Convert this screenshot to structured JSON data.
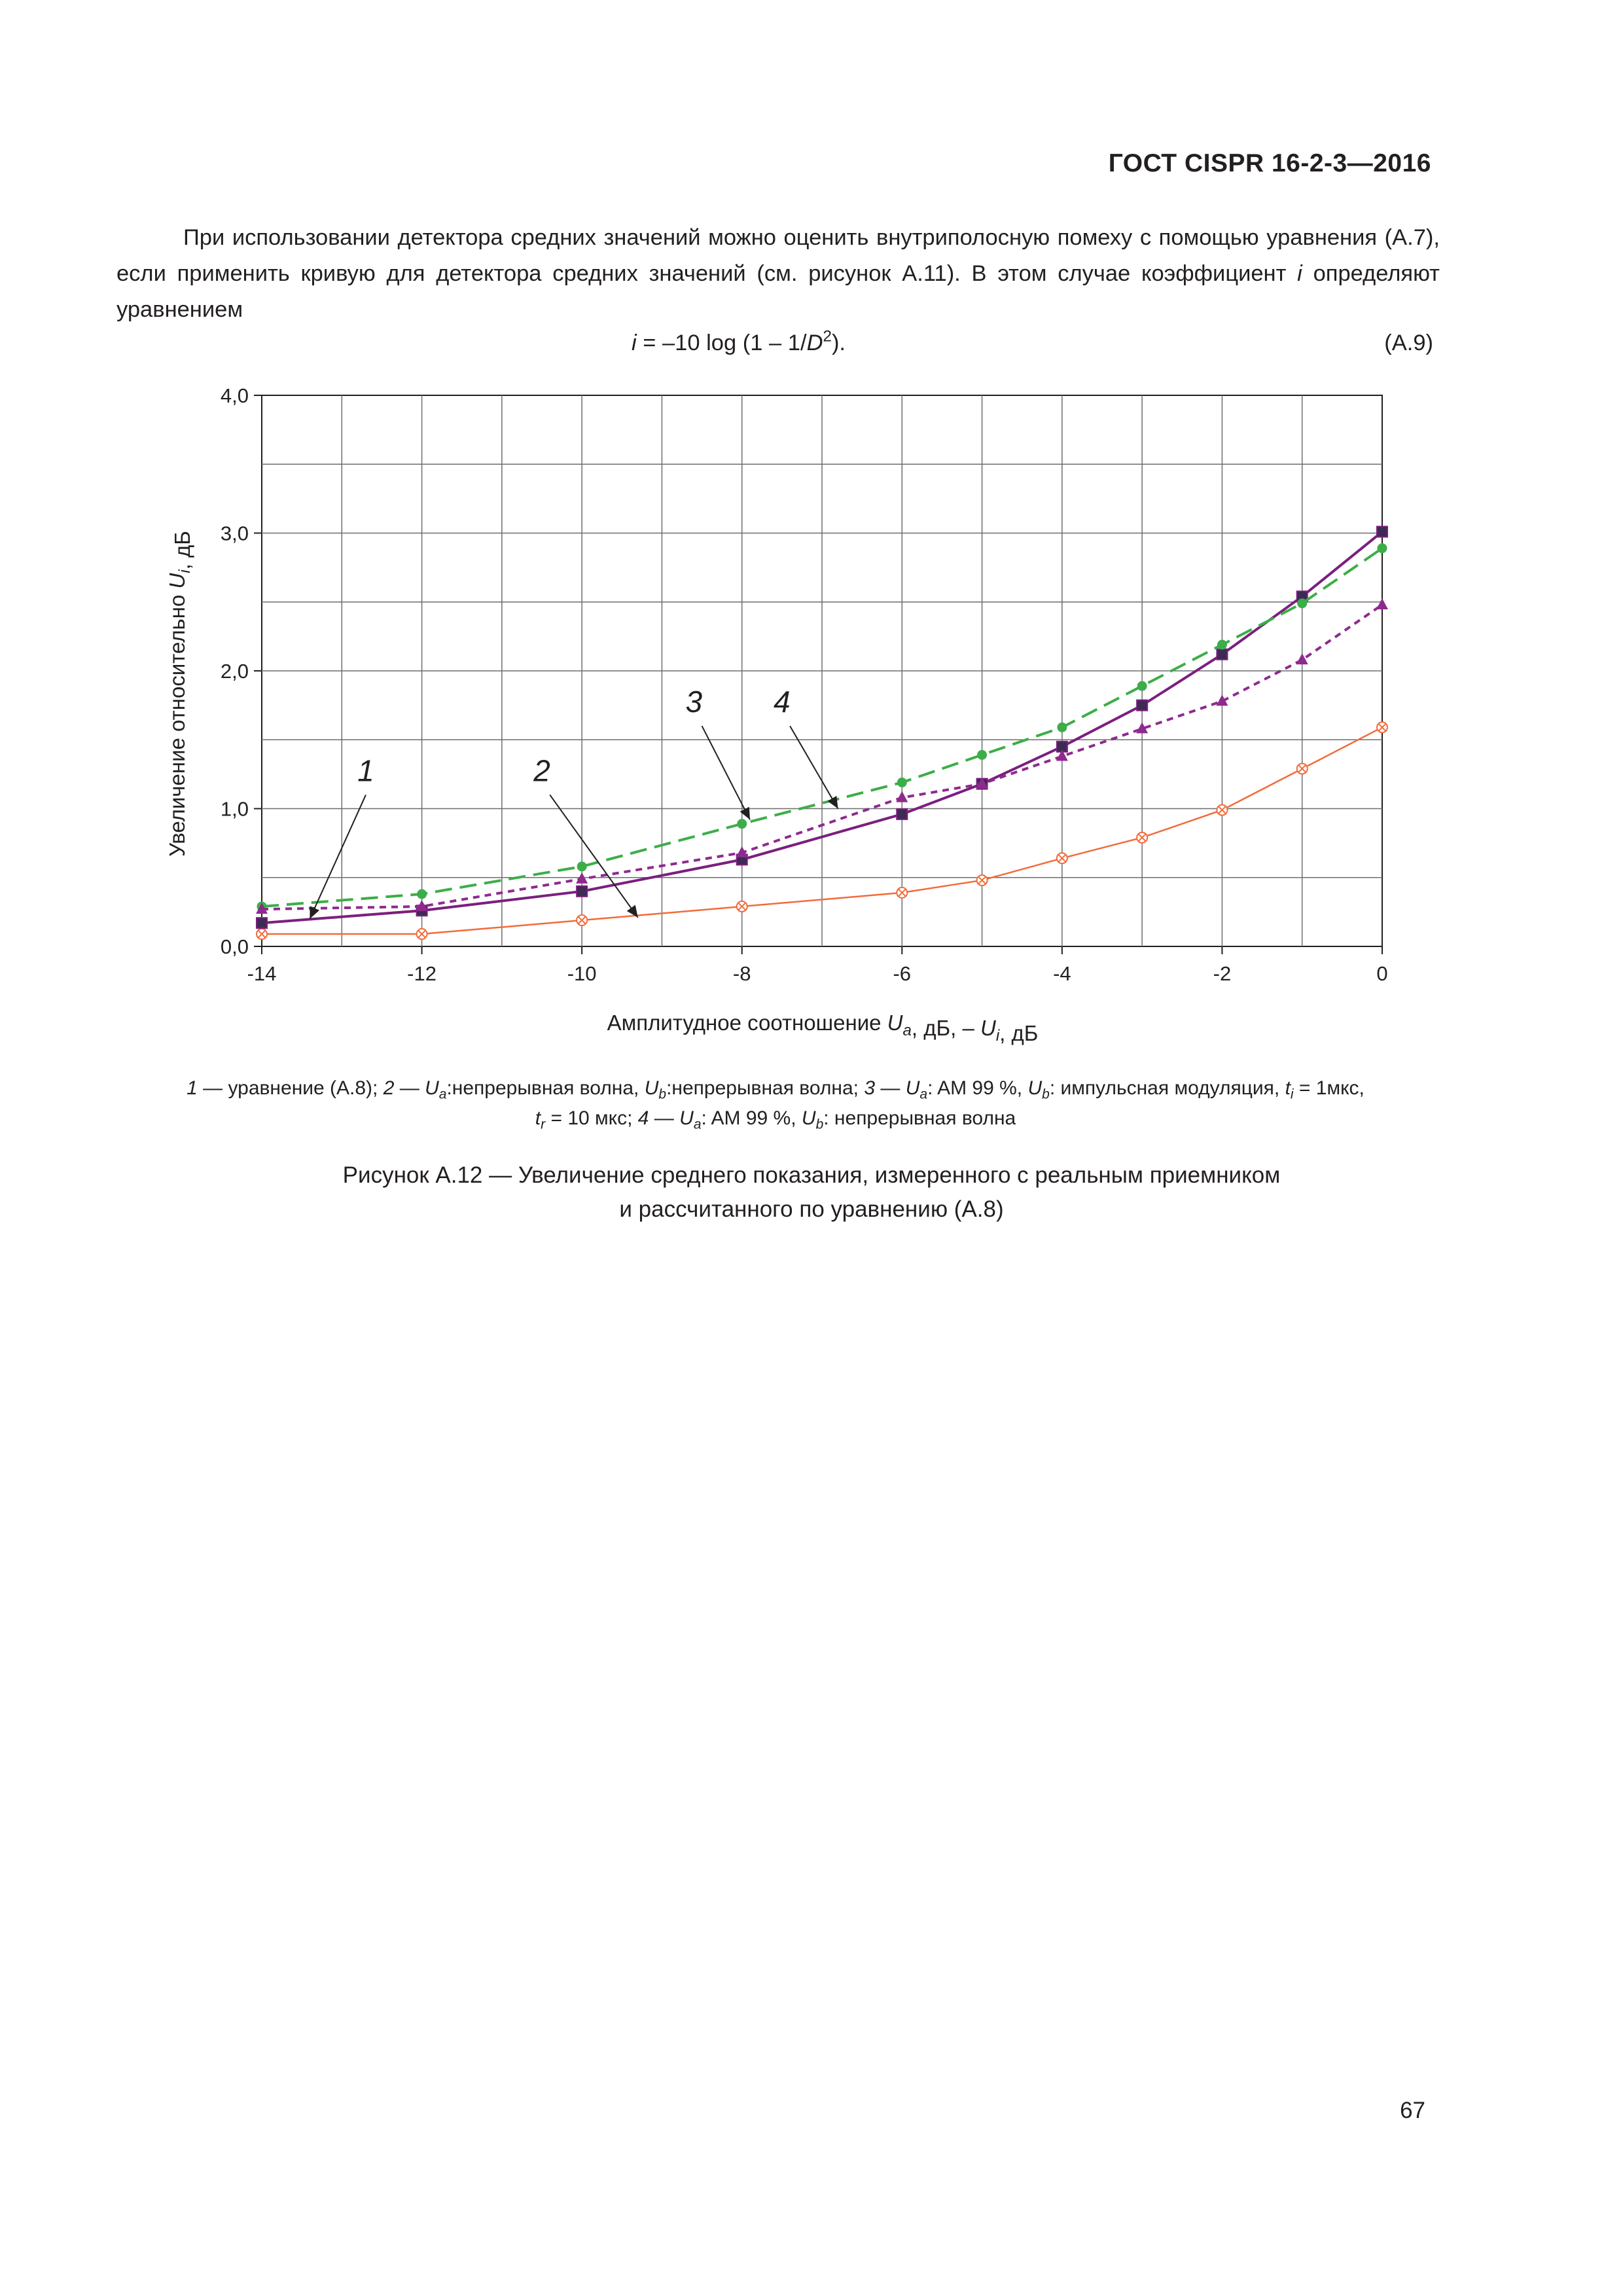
{
  "header": {
    "title": "ГОСТ CISPR 16-2-3—2016"
  },
  "paragraph": {
    "line1": "При использовании детектора средних значений можно оценить внутриполосную помеху с помощью уравнения (А.7), если применить кривую для детектора средних значений (см. рисунок А.11). В этом случае коэффициент ",
    "var_i": "i",
    "line_end": " определяют уравнением"
  },
  "equation": {
    "lhs": "i",
    "mid": " = –10 log (1 – 1/",
    "var_d": "D",
    "exp": "2",
    "end": ").",
    "number": "(А.9)"
  },
  "chart_data": {
    "type": "line",
    "xlabel": "Амплитудное соотношение U_a, дБ, – U_i, дБ",
    "ylabel": "Увеличение относительно U_i, дБ",
    "xlim": [
      -14,
      0
    ],
    "ylim": [
      0,
      4
    ],
    "x_ticks": [
      "-14",
      "-12",
      "-10",
      "-8",
      "-6",
      "-4",
      "-2",
      "0"
    ],
    "y_ticks": [
      "0,0",
      "1,0",
      "2,0",
      "3,0",
      "4,0"
    ],
    "grid": true,
    "series": [
      {
        "name": "1",
        "color": "#f26b3a",
        "style": "solid",
        "marker": "x-circle",
        "x": [
          -14,
          -12,
          -10,
          -8,
          -6,
          -5,
          -4,
          -3,
          -2,
          -1,
          0
        ],
        "y": [
          0.09,
          0.09,
          0.19,
          0.29,
          0.39,
          0.48,
          0.64,
          0.79,
          0.99,
          1.29,
          1.59
        ]
      },
      {
        "name": "2",
        "color": "#7b1f7e",
        "style": "solid",
        "marker": "square",
        "x": [
          -14,
          -12,
          -10,
          -8,
          -6,
          -5,
          -4,
          -3,
          -2,
          -1,
          0
        ],
        "y": [
          0.17,
          0.26,
          0.4,
          0.63,
          0.96,
          1.18,
          1.45,
          1.75,
          2.12,
          2.54,
          3.01
        ]
      },
      {
        "name": "3",
        "color": "#3cae49",
        "style": "long-dash",
        "marker": "circle",
        "x": [
          -14,
          -12,
          -10,
          -8,
          -6,
          -5,
          -4,
          -3,
          -2,
          -1,
          0
        ],
        "y": [
          0.29,
          0.38,
          0.58,
          0.89,
          1.19,
          1.39,
          1.59,
          1.89,
          2.19,
          2.49,
          2.89
        ]
      },
      {
        "name": "4",
        "color": "#8e2a8e",
        "style": "short-dash",
        "marker": "triangle",
        "x": [
          -14,
          -12,
          -10,
          -8,
          -6,
          -5,
          -4,
          -3,
          -2,
          -1,
          0
        ],
        "y": [
          0.27,
          0.29,
          0.49,
          0.68,
          1.08,
          1.18,
          1.38,
          1.58,
          1.78,
          2.08,
          2.48
        ]
      }
    ],
    "annotations": [
      "1",
      "2",
      "3",
      "4"
    ]
  },
  "legend": {
    "n1": "1",
    "t1": " — уравнение (А.8); ",
    "n2": "2",
    "t2a": " — ",
    "u_a1": "U",
    "sub_a1": "a",
    "t2b": ":непрерывная волна, ",
    "u_b1": "U",
    "sub_b1": "b",
    "t2c": ":непрерывная волна; ",
    "n3": "3",
    "t3a": " — ",
    "u_a2": "U",
    "sub_a2": "a",
    "t3b": ": AM 99 %, ",
    "u_b2": "U",
    "sub_b2": "b",
    "t3c": ": импульсная модуляция, ",
    "t_i": "t",
    "sub_i": "i",
    "t3d": " = 1мкс,",
    "t_r": "t",
    "sub_r": "r",
    "t3e": " = 10 мкс; ",
    "n4": "4",
    "t4a": " — ",
    "u_a3": "U",
    "sub_a3": "a",
    "t4b": ": AM 99 %, ",
    "u_b3": "U",
    "sub_b3": "b",
    "t4c": ": непрерывная волна"
  },
  "caption": {
    "line1": "Рисунок А.12 — Увеличение среднего показания, измеренного с реальным приемником",
    "line2": "и рассчитанного по уравнению (А.8)"
  },
  "page": {
    "number": "67"
  }
}
